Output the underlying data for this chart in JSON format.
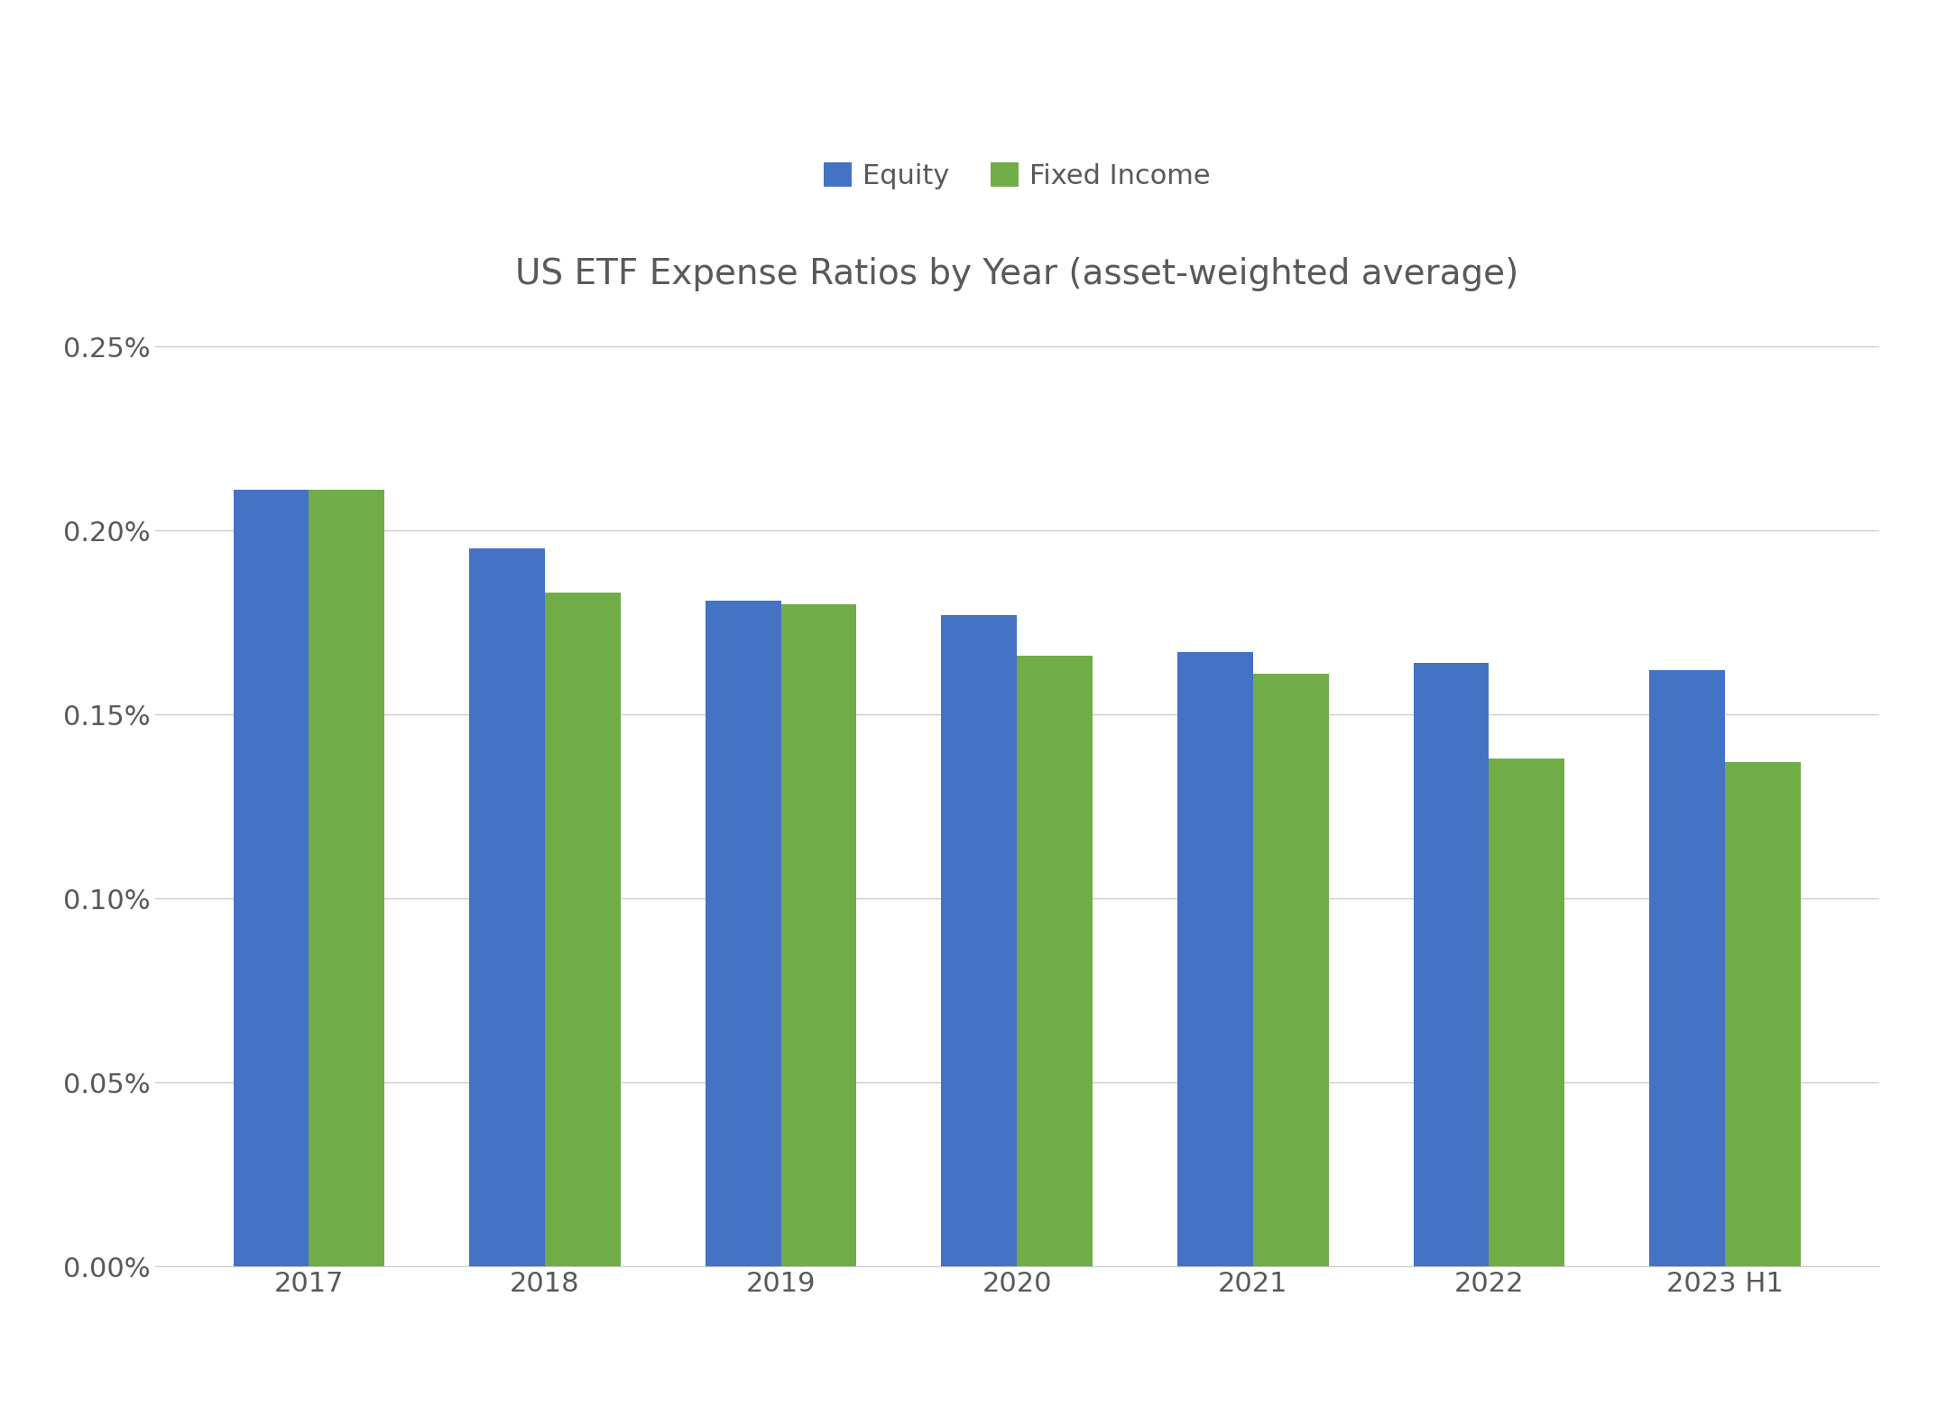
{
  "title": "US ETF Expense Ratios by Year (asset-weighted average)",
  "years": [
    "2017",
    "2018",
    "2019",
    "2020",
    "2021",
    "2022",
    "2023 H1"
  ],
  "equity": [
    0.00211,
    0.00195,
    0.00181,
    0.00177,
    0.00167,
    0.00164,
    0.00162
  ],
  "fixed_income": [
    0.00211,
    0.00183,
    0.0018,
    0.00166,
    0.00161,
    0.00138,
    0.00137
  ],
  "equity_color": "#4472C4",
  "fixed_income_color": "#70AD47",
  "background_color": "#FFFFFF",
  "ylim": [
    0,
    0.0026
  ],
  "yticks": [
    0,
    0.0005,
    0.001,
    0.0015,
    0.002,
    0.0025
  ],
  "title_fontsize": 28,
  "tick_fontsize": 22,
  "legend_fontsize": 22,
  "bar_width": 0.32,
  "grid_color": "#CCCCCC",
  "text_color": "#595959"
}
